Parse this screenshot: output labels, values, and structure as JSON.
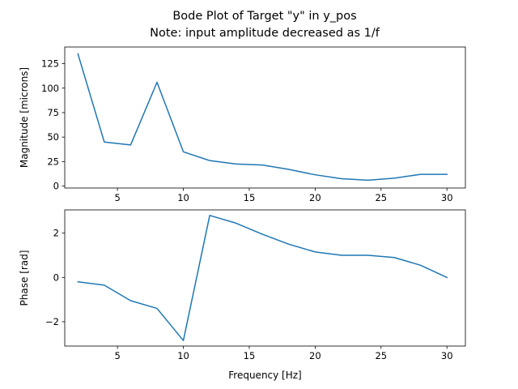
{
  "title_line1": "Bode Plot of Target \"y\" in y_pos",
  "title_line2": "Note: input amplitude decreased as 1/f",
  "colors": {
    "line": "#1f77b4",
    "axes": "#000000",
    "background": "#ffffff"
  },
  "chart_data": [
    {
      "type": "line",
      "ylabel": "Magnitude [microns]",
      "xlabel": "",
      "xlim": [
        1.0,
        31.4
      ],
      "ylim": [
        -2,
        142
      ],
      "xticks": [
        5,
        10,
        15,
        20,
        25,
        30
      ],
      "yticks": [
        0,
        25,
        50,
        75,
        100,
        125
      ],
      "grid": false,
      "x": [
        2,
        4,
        6,
        8,
        10,
        12,
        14,
        16,
        18,
        20,
        22,
        24,
        26,
        28,
        30
      ],
      "y": [
        135,
        45,
        42,
        106,
        35,
        26,
        22.5,
        21.5,
        17,
        11.5,
        7.5,
        6,
        8,
        12,
        12
      ]
    },
    {
      "type": "line",
      "ylabel": "Phase [rad]",
      "xlabel": "Frequency [Hz]",
      "xlim": [
        1.0,
        31.4
      ],
      "ylim": [
        -3.1,
        3.05
      ],
      "xticks": [
        5,
        10,
        15,
        20,
        25,
        30
      ],
      "yticks": [
        -2,
        0,
        2
      ],
      "grid": false,
      "x": [
        2,
        4,
        6,
        8,
        10,
        12,
        14,
        16,
        18,
        20,
        22,
        24,
        26,
        28,
        30
      ],
      "y": [
        -0.2,
        -0.35,
        -1.05,
        -1.4,
        -2.85,
        2.8,
        2.45,
        1.95,
        1.5,
        1.15,
        1.0,
        1.0,
        0.9,
        0.55,
        0.0
      ]
    }
  ]
}
